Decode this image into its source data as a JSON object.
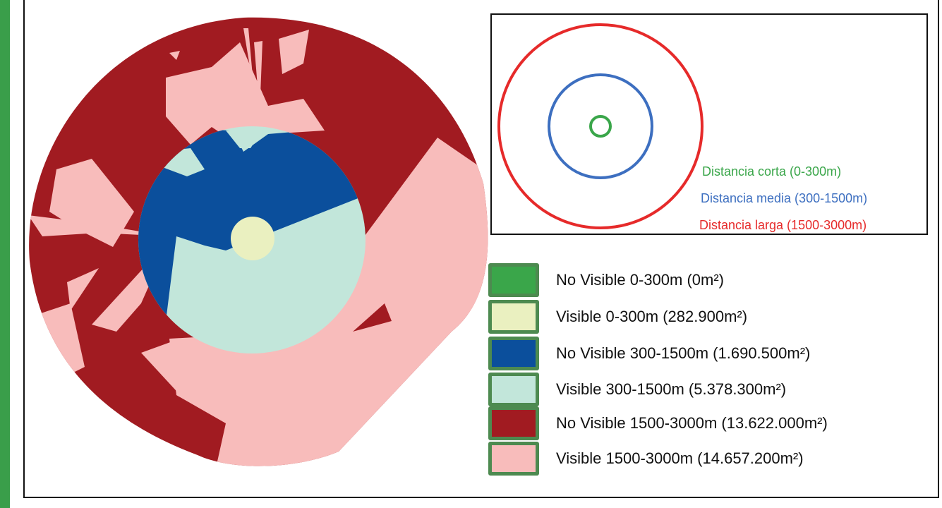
{
  "colors": {
    "frame": "#111111",
    "accent_strip": "#3a9e4a",
    "swatch_border": "#4d8a50"
  },
  "distance_rings": {
    "short": {
      "label": "Distancia corta (0-300m)",
      "color": "#3aa64a"
    },
    "medium": {
      "label": "Distancia media (300-1500m)",
      "color": "#3d6fc0"
    },
    "long": {
      "label": "Distancia larga (1500-3000m)",
      "color": "#e62a2a"
    }
  },
  "legend": {
    "items": [
      {
        "label": "No Visible 0-300m (0m²)",
        "color": "#3aa64a"
      },
      {
        "label": "Visible 0-300m (282.900m²)",
        "color": "#eaf0c0"
      },
      {
        "label": "No Visible 300-1500m (1.690.500m²)",
        "color": "#0b4f9c"
      },
      {
        "label": "Visible 300-1500m (5.378.300m²)",
        "color": "#c2e6da"
      },
      {
        "label": "No Visible 1500-3000m (13.622.000m²)",
        "color": "#a11b21"
      },
      {
        "label": "Visible 1500-3000m (14.657.200m²)",
        "color": "#f8bcbb"
      }
    ]
  }
}
